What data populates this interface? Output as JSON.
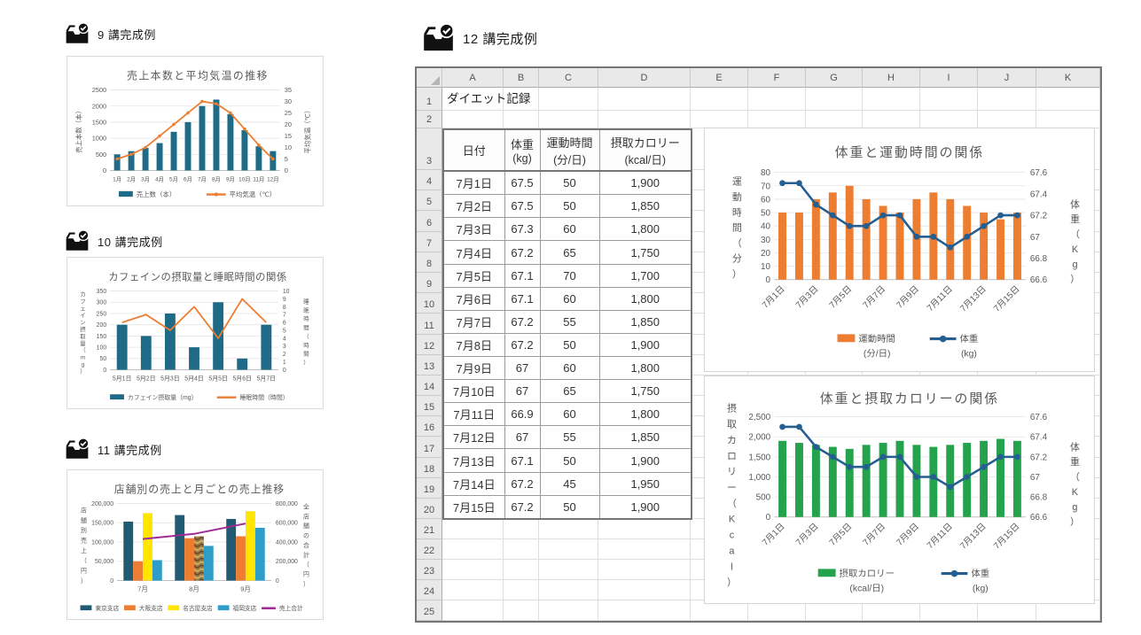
{
  "lessons": [
    {
      "id": "lesson9",
      "title": "9 講完成例"
    },
    {
      "id": "lesson10",
      "title": "10 講完成例"
    },
    {
      "id": "lesson11",
      "title": "11 講完成例"
    },
    {
      "id": "lesson12",
      "title": "12 講完成例"
    }
  ],
  "colors": {
    "teal_bar": "#1F6B87",
    "orange": "#ED7D31",
    "line_blue": "#255E91",
    "green_bar": "#25A24C",
    "purple": "#A02B93",
    "yellow": "#FFE500",
    "light_blue": "#2E9EC9",
    "dark_teal": "#205B73",
    "axis_text": "#595959",
    "gridline": "#E3E3E3",
    "sheet_border": "#767676"
  },
  "spreadsheet": {
    "column_headers": [
      "A",
      "B",
      "C",
      "D",
      "E",
      "F",
      "G",
      "H",
      "I",
      "J",
      "K"
    ],
    "row_headers": [
      "1",
      "2",
      "3",
      "4",
      "5",
      "6",
      "7",
      "8",
      "9",
      "10",
      "11",
      "12",
      "13",
      "14",
      "15",
      "16",
      "17",
      "18",
      "19",
      "20",
      "21",
      "22",
      "23",
      "24",
      "25"
    ],
    "cell_a1": "ダイエット記録",
    "table": {
      "headers": [
        {
          "line1": "日付",
          "line2": ""
        },
        {
          "line1": "体重",
          "line2": "(kg)"
        },
        {
          "line1": "運動時間",
          "line2": "(分/日)"
        },
        {
          "line1": "摂取カロリー",
          "line2": "(kcal/日)"
        }
      ],
      "rows": [
        [
          "7月1日",
          "67.5",
          "50",
          "1,900"
        ],
        [
          "7月2日",
          "67.5",
          "50",
          "1,850"
        ],
        [
          "7月3日",
          "67.3",
          "60",
          "1,800"
        ],
        [
          "7月4日",
          "67.2",
          "65",
          "1,750"
        ],
        [
          "7月5日",
          "67.1",
          "70",
          "1,700"
        ],
        [
          "7月6日",
          "67.1",
          "60",
          "1,800"
        ],
        [
          "7月7日",
          "67.2",
          "55",
          "1,850"
        ],
        [
          "7月8日",
          "67.2",
          "50",
          "1,900"
        ],
        [
          "7月9日",
          "67",
          "60",
          "1,800"
        ],
        [
          "7月10日",
          "67",
          "65",
          "1,750"
        ],
        [
          "7月11日",
          "66.9",
          "60",
          "1,800"
        ],
        [
          "7月12日",
          "67",
          "55",
          "1,850"
        ],
        [
          "7月13日",
          "67.1",
          "50",
          "1,900"
        ],
        [
          "7月14日",
          "67.2",
          "45",
          "1,950"
        ],
        [
          "7月15日",
          "67.2",
          "50",
          "1,900"
        ]
      ]
    }
  },
  "chart_data": [
    {
      "id": "sales-temp",
      "type": "combo-bar-line",
      "title": "売上本数と平均気温の推移",
      "categories": [
        "1月",
        "2月",
        "3月",
        "4月",
        "5月",
        "6月",
        "7月",
        "8月",
        "9月",
        "10月",
        "11月",
        "12月"
      ],
      "bar_series": [
        {
          "name": "売上数（本）",
          "color": "#1F6B87",
          "values": [
            500,
            600,
            700,
            850,
            1200,
            1500,
            2000,
            2200,
            1750,
            1250,
            750,
            600
          ]
        }
      ],
      "line_series": [
        {
          "name": "平均気温（℃）",
          "color": "#ED7D31",
          "markers": true,
          "axis": "right",
          "values": [
            5,
            7,
            10,
            15,
            20,
            25,
            30,
            29,
            25,
            18,
            11,
            5
          ]
        }
      ],
      "left_axis": {
        "min": 0,
        "max": 2500,
        "step": 500,
        "title": "売上本数（本）"
      },
      "right_axis": {
        "min": 0,
        "max": 35,
        "step": 5,
        "title": "平均気温（℃）"
      },
      "legend_position": "bottom",
      "grid": true
    },
    {
      "id": "caffeine-sleep",
      "type": "combo-bar-line",
      "title": "カフェインの摂取量と睡眠時間の関係",
      "categories": [
        "5月1日",
        "5月2日",
        "5月3日",
        "5月4日",
        "5月5日",
        "5月6日",
        "5月7日"
      ],
      "bar_series": [
        {
          "name": "カフェイン摂取量（mg）",
          "color": "#1F6B87",
          "values": [
            200,
            150,
            250,
            100,
            300,
            50,
            200
          ]
        }
      ],
      "line_series": [
        {
          "name": "睡眠時間（時間）",
          "color": "#ED7D31",
          "markers": false,
          "axis": "right",
          "values": [
            6,
            7,
            5,
            8,
            4,
            9,
            6
          ]
        }
      ],
      "left_axis": {
        "min": 0,
        "max": 350,
        "step": 50,
        "title": "カフェイン摂取量（mg）"
      },
      "right_axis": {
        "min": 0,
        "max": 10,
        "step": 1,
        "title": "睡眠時間（時間）"
      },
      "legend_position": "bottom",
      "grid": true
    },
    {
      "id": "store-sales",
      "type": "combo-bar-line",
      "title": "店舗別の売上と月ごとの売上推移",
      "categories": [
        "7月",
        "8月",
        "9月"
      ],
      "bar_series": [
        {
          "name": "東京支店",
          "color": "#205B73",
          "values": [
            153000,
            170000,
            160000
          ]
        },
        {
          "name": "大阪支店",
          "color": "#ED7D31",
          "values": [
            50000,
            110000,
            115000
          ]
        },
        {
          "name": "名古屋支店",
          "color": "#FFE500",
          "values": [
            175000,
            115000,
            180000
          ],
          "texture_at": 1
        },
        {
          "name": "福岡支店",
          "color": "#2E9EC9",
          "values": [
            53000,
            90000,
            137000
          ]
        }
      ],
      "line_series": [
        {
          "name": "売上合計",
          "color": "#A02B93",
          "markers": false,
          "axis": "right",
          "values": [
            431000,
            485000,
            592000
          ]
        }
      ],
      "left_axis": {
        "min": 0,
        "max": 200000,
        "step": 50000,
        "comma": true,
        "title": "店舗別売上（円）"
      },
      "right_axis": {
        "min": 0,
        "max": 800000,
        "step": 200000,
        "comma": true,
        "title": "全店舗の合計（円）"
      },
      "legend_position": "bottom",
      "grid": true
    },
    {
      "id": "weight-exercise",
      "type": "combo-bar-line",
      "title": "体重と運動時間の関係",
      "categories": [
        "7月1日",
        "7月2日",
        "7月3日",
        "7月4日",
        "7月5日",
        "7月6日",
        "7月7日",
        "7月8日",
        "7月9日",
        "7月10日",
        "7月11日",
        "7月12日",
        "7月13日",
        "7月14日",
        "7月15日"
      ],
      "bar_series": [
        {
          "name": "運動時間",
          "name2": "(分/日)",
          "color": "#ED7D31",
          "values": [
            50,
            50,
            60,
            65,
            70,
            60,
            55,
            50,
            60,
            65,
            60,
            55,
            50,
            45,
            50
          ]
        }
      ],
      "line_series": [
        {
          "name": "体重",
          "name2": "(kg)",
          "color": "#255E91",
          "markers": true,
          "axis": "right",
          "values": [
            67.5,
            67.5,
            67.3,
            67.2,
            67.1,
            67.1,
            67.2,
            67.2,
            67,
            67,
            66.9,
            67,
            67.1,
            67.2,
            67.2
          ]
        }
      ],
      "left_axis": {
        "min": 0,
        "max": 80,
        "step": 10,
        "title": "運動時間（分）"
      },
      "right_axis": {
        "min": 66.6,
        "max": 67.6,
        "step": 0.2,
        "decimals": 1,
        "title": "体重（Kg）"
      },
      "legend_position": "bottom",
      "grid": true
    },
    {
      "id": "weight-calorie",
      "type": "combo-bar-line",
      "title": "体重と摂取カロリーの関係",
      "categories": [
        "7月1日",
        "7月2日",
        "7月3日",
        "7月4日",
        "7月5日",
        "7月6日",
        "7月7日",
        "7月8日",
        "7月9日",
        "7月10日",
        "7月11日",
        "7月12日",
        "7月13日",
        "7月14日",
        "7月15日"
      ],
      "bar_series": [
        {
          "name": "摂取カロリー",
          "name2": "(kcal/日)",
          "color": "#25A24C",
          "values": [
            1900,
            1850,
            1800,
            1750,
            1700,
            1800,
            1850,
            1900,
            1800,
            1750,
            1800,
            1850,
            1900,
            1950,
            1900
          ]
        }
      ],
      "line_series": [
        {
          "name": "体重",
          "name2": "(kg)",
          "color": "#255E91",
          "markers": true,
          "axis": "right",
          "values": [
            67.5,
            67.5,
            67.3,
            67.2,
            67.1,
            67.1,
            67.2,
            67.2,
            67,
            67,
            66.9,
            67,
            67.1,
            67.2,
            67.2
          ]
        }
      ],
      "left_axis": {
        "min": 0,
        "max": 2500,
        "step": 500,
        "comma": true,
        "title": "摂取カロリー（Kcal）"
      },
      "right_axis": {
        "min": 66.6,
        "max": 67.6,
        "step": 0.2,
        "decimals": 1,
        "title": "体重（Kg）"
      },
      "legend_position": "bottom",
      "grid": true
    }
  ]
}
